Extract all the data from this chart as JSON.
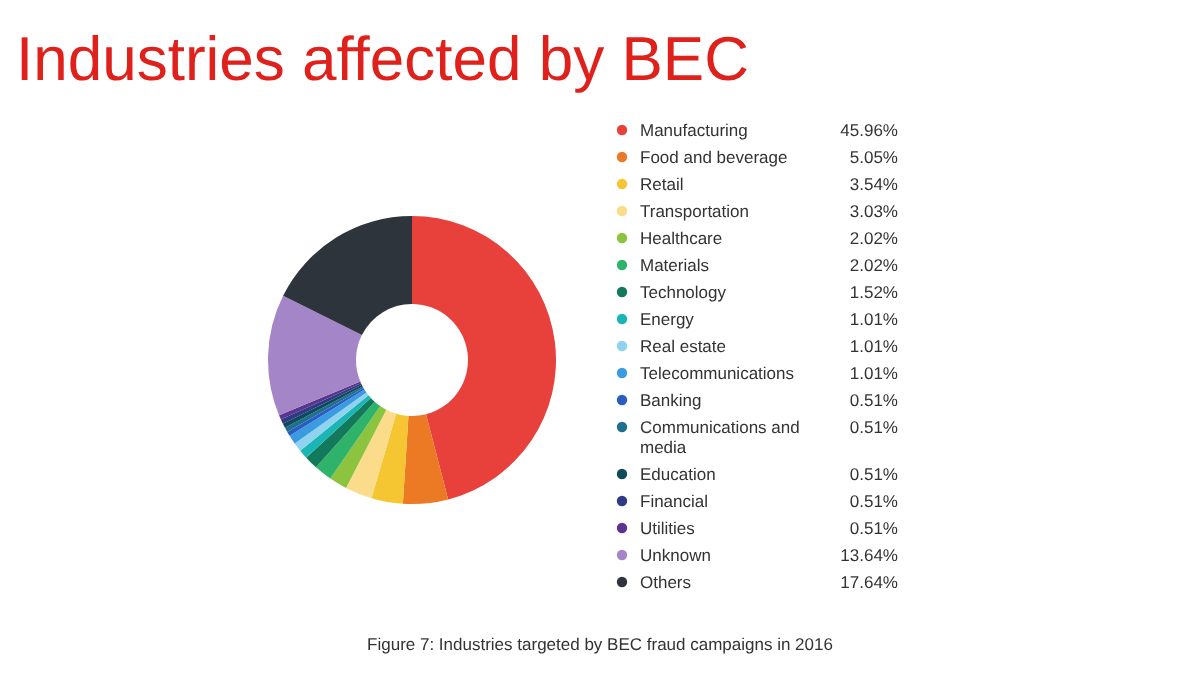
{
  "chart_data": {
    "type": "donut",
    "title": "Industries affected by BEC",
    "categories": [
      "Manufacturing",
      "Food and beverage",
      "Retail",
      "Transportation",
      "Healthcare",
      "Materials",
      "Technology",
      "Energy",
      "Real estate",
      "Telecommunications",
      "Banking",
      "Communications and media",
      "Education",
      "Financial",
      "Utilities",
      "Unknown",
      "Others"
    ],
    "values": [
      45.96,
      5.05,
      3.54,
      3.03,
      2.02,
      2.02,
      1.52,
      1.01,
      1.01,
      1.01,
      0.51,
      0.51,
      0.51,
      0.51,
      0.51,
      13.64,
      17.64
    ],
    "value_labels": [
      "45.96%",
      "5.05%",
      "3.54%",
      "3.03%",
      "2.02%",
      "2.02%",
      "1.52%",
      "1.01%",
      "1.01%",
      "1.01%",
      "0.51%",
      "0.51%",
      "0.51%",
      "0.51%",
      "0.51%",
      "13.64%",
      "17.64%"
    ],
    "colors": [
      "#e8403a",
      "#ec7a24",
      "#f6c532",
      "#fbdc8a",
      "#8cc33f",
      "#2fb36a",
      "#127a5b",
      "#1bb5b5",
      "#8fd3f0",
      "#3a9be0",
      "#2a5cc4",
      "#1f6f8f",
      "#0d4a5a",
      "#2e3a84",
      "#5a3590",
      "#a486c8",
      "#2e343b"
    ],
    "legend": "right",
    "annotations": [
      "Figure 7: Industries targeted by BEC fraud campaigns in 2016"
    ]
  }
}
